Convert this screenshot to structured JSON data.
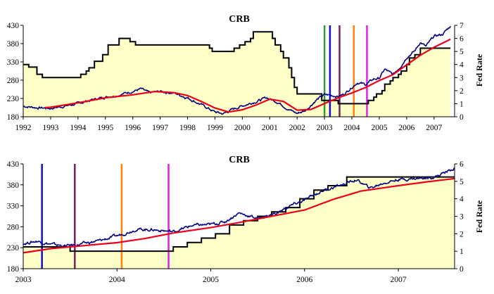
{
  "chart_data": [
    {
      "type": "line",
      "title": "CRB",
      "y2label": "Fed Rate",
      "xlim": [
        1992.0,
        2007.75
      ],
      "ylim": [
        180,
        430
      ],
      "y2lim": [
        0,
        7
      ],
      "xticks": [
        1992,
        1993,
        1994,
        1995,
        1996,
        1997,
        1998,
        1999,
        2000,
        2001,
        2002,
        2003,
        2004,
        2005,
        2006,
        2007
      ],
      "yticks": [
        180,
        230,
        280,
        330,
        380,
        430
      ],
      "y2ticks": [
        0,
        1,
        2,
        3,
        4,
        5,
        6,
        7
      ],
      "colors": {
        "crb": "#000080",
        "ma": "#e8001c",
        "fed": "#000000",
        "fill": "#ffffc8"
      },
      "series": [
        {
          "role": "crb",
          "x": [
            1992.0,
            1992.5,
            1993.0,
            1993.5,
            1994.0,
            1994.5,
            1995.0,
            1995.5,
            1996.0,
            1996.3,
            1996.6,
            1997.0,
            1997.5,
            1998.0,
            1998.5,
            1999.0,
            1999.3,
            1999.6,
            2000.0,
            2000.5,
            2000.9,
            2001.3,
            2001.7,
            2002.0,
            2002.3,
            2002.7,
            2003.0,
            2003.2,
            2003.5,
            2003.7,
            2004.0,
            2004.2,
            2004.5,
            2004.8,
            2005.0,
            2005.2,
            2005.5,
            2005.8,
            2006.0,
            2006.3,
            2006.5,
            2006.7,
            2007.0,
            2007.3,
            2007.6
          ],
          "values": [
            209,
            205,
            203,
            209,
            216,
            226,
            234,
            240,
            250,
            256,
            245,
            249,
            245,
            232,
            213,
            193,
            188,
            199,
            210,
            222,
            232,
            220,
            200,
            189,
            197,
            226,
            240,
            239,
            236,
            241,
            261,
            274,
            268,
            283,
            285,
            310,
            295,
            320,
            343,
            360,
            384,
            372,
            400,
            405,
            428
          ]
        },
        {
          "role": "ma",
          "x": [
            1992.8,
            1993.0,
            1994.0,
            1995.0,
            1996.0,
            1996.8,
            1997.5,
            1998.0,
            1998.5,
            1999.0,
            1999.5,
            2000.0,
            2000.5,
            2001.0,
            2001.5,
            2002.0,
            2002.5,
            2003.0,
            2003.5,
            2004.0,
            2004.5,
            2005.0,
            2005.5,
            2006.0,
            2006.5,
            2007.0,
            2007.6
          ],
          "values": [
            205,
            206,
            218,
            232,
            240,
            249,
            246,
            238,
            222,
            204,
            193,
            199,
            212,
            228,
            222,
            198,
            200,
            216,
            232,
            245,
            260,
            279,
            295,
            322,
            348,
            370,
            392
          ]
        },
        {
          "role": "fed",
          "axis": "y2",
          "x": [
            1992.0,
            1992.2,
            1992.5,
            1992.7,
            1994.0,
            1994.1,
            1994.3,
            1994.4,
            1994.6,
            1994.9,
            1995.1,
            1995.5,
            1995.9,
            1996.1,
            1997.2,
            1998.7,
            1998.8,
            1998.9,
            1999.5,
            1999.7,
            1999.9,
            2000.1,
            2000.3,
            2000.4,
            2001.0,
            2001.1,
            2001.2,
            2001.4,
            2001.5,
            2001.7,
            2001.8,
            2001.9,
            2002.0,
            2002.9,
            2003.5,
            2004.5,
            2004.6,
            2004.8,
            2004.9,
            2005.1,
            2005.2,
            2005.4,
            2005.5,
            2005.7,
            2005.8,
            2006.0,
            2006.1,
            2006.3,
            2006.5,
            2007.6
          ],
          "values": [
            4.0,
            3.8,
            3.25,
            3.0,
            3.0,
            3.25,
            3.5,
            3.75,
            4.25,
            4.75,
            5.5,
            6.0,
            5.75,
            5.5,
            5.5,
            5.5,
            5.25,
            5.0,
            5.0,
            5.25,
            5.5,
            5.75,
            6.0,
            6.5,
            6.5,
            6.0,
            5.5,
            5.0,
            4.5,
            3.75,
            3.0,
            2.25,
            1.75,
            1.25,
            1.0,
            1.0,
            1.25,
            1.5,
            1.75,
            2.0,
            2.5,
            2.75,
            3.0,
            3.25,
            3.5,
            4.0,
            4.5,
            4.75,
            5.25,
            5.25
          ]
        }
      ],
      "markers": [
        {
          "x": 2003.0,
          "color": "#339933"
        },
        {
          "x": 2003.2,
          "color": "#1010c8"
        },
        {
          "x": 2003.55,
          "color": "#7a1f5c"
        },
        {
          "x": 2004.07,
          "color": "#ff7f11"
        },
        {
          "x": 2004.55,
          "color": "#e020e0"
        }
      ]
    },
    {
      "type": "line",
      "title": "CRB",
      "y2label": "Fed Rate",
      "xlim": [
        2003.0,
        2007.6
      ],
      "ylim": [
        180,
        430
      ],
      "y2lim": [
        0,
        6
      ],
      "xticks": [
        2003,
        2004,
        2005,
        2006,
        2007
      ],
      "yticks": [
        180,
        230,
        280,
        330,
        380,
        430
      ],
      "y2ticks": [
        0,
        1,
        2,
        3,
        4,
        5,
        6
      ],
      "colors": {
        "crb": "#000080",
        "ma": "#e8001c",
        "fed": "#000000",
        "fill": "#ffffc8"
      },
      "series": [
        {
          "role": "crb",
          "x": [
            2003.0,
            2003.15,
            2003.3,
            2003.45,
            2003.6,
            2003.8,
            2004.0,
            2004.2,
            2004.4,
            2004.6,
            2004.8,
            2005.0,
            2005.15,
            2005.3,
            2005.5,
            2005.7,
            2005.85,
            2006.0,
            2006.2,
            2006.4,
            2006.55,
            2006.7,
            2006.85,
            2007.0,
            2007.2,
            2007.4,
            2007.6
          ],
          "values": [
            240,
            246,
            238,
            234,
            238,
            246,
            258,
            274,
            273,
            268,
            283,
            285,
            292,
            313,
            300,
            312,
            330,
            343,
            367,
            380,
            392,
            372,
            385,
            393,
            395,
            400,
            420
          ]
        },
        {
          "role": "ma",
          "x": [
            2003.0,
            2003.3,
            2003.6,
            2004.0,
            2004.3,
            2004.6,
            2005.0,
            2005.3,
            2005.6,
            2006.0,
            2006.3,
            2006.6,
            2007.0,
            2007.3,
            2007.6
          ],
          "values": [
            218,
            228,
            234,
            242,
            252,
            265,
            278,
            290,
            303,
            320,
            345,
            365,
            378,
            387,
            395
          ]
        },
        {
          "role": "fed",
          "axis": "y2",
          "x": [
            2003.0,
            2003.5,
            2004.5,
            2004.6,
            2004.75,
            2004.9,
            2005.05,
            2005.2,
            2005.35,
            2005.5,
            2005.65,
            2005.8,
            2005.95,
            2006.1,
            2006.25,
            2006.45,
            2007.6
          ],
          "values": [
            1.25,
            1.0,
            1.0,
            1.25,
            1.5,
            1.75,
            2.0,
            2.5,
            2.75,
            3.0,
            3.25,
            3.5,
            4.0,
            4.5,
            4.75,
            5.25,
            5.25
          ]
        }
      ],
      "markers": [
        {
          "x": 2003.2,
          "color": "#1010c8"
        },
        {
          "x": 2003.55,
          "color": "#7a1f5c"
        },
        {
          "x": 2004.05,
          "color": "#ff7f11"
        },
        {
          "x": 2004.55,
          "color": "#e020e0"
        }
      ]
    }
  ]
}
